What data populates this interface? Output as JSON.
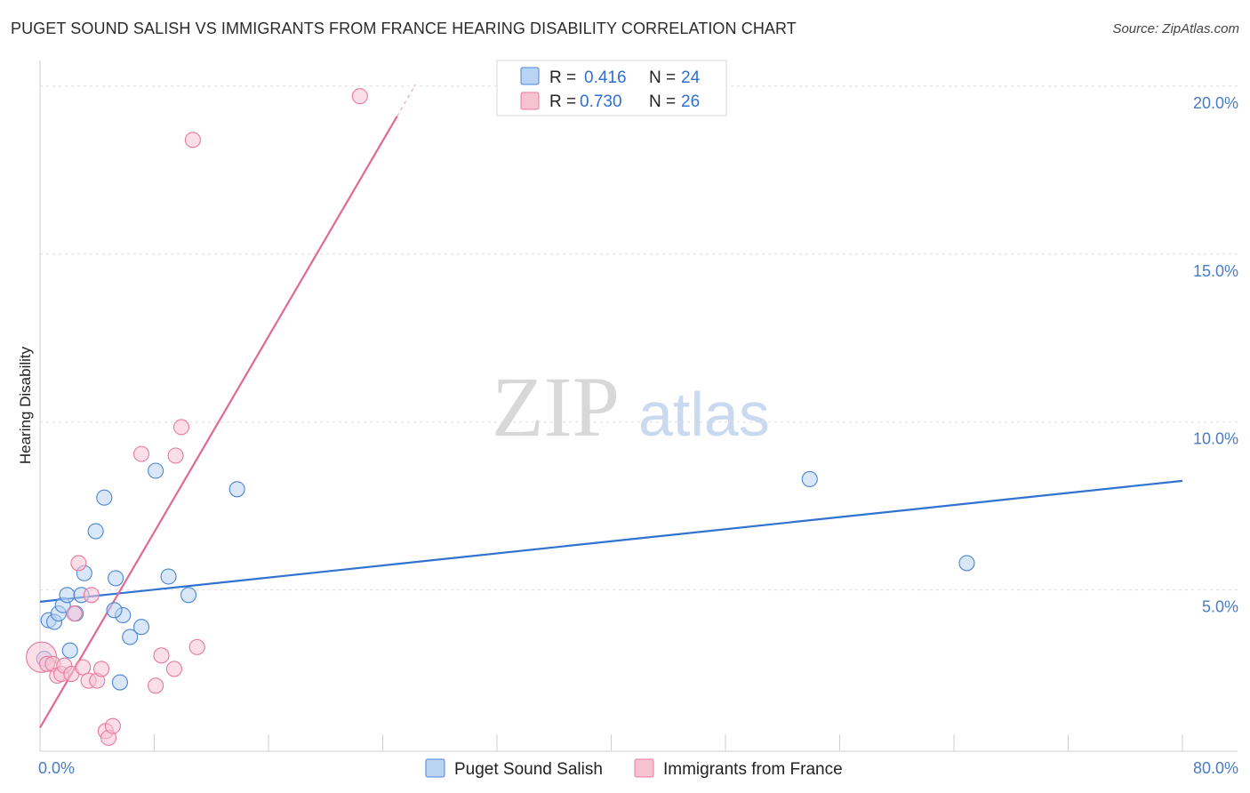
{
  "chart_data": {
    "type": "scatter",
    "title": "PUGET SOUND SALISH VS IMMIGRANTS FROM FRANCE HEARING DISABILITY CORRELATION CHART",
    "source": "Source: ZipAtlas.com",
    "ylabel": "Hearing Disability",
    "xlim": [
      0,
      80
    ],
    "ylim": [
      0.2,
      20.5
    ],
    "x_tick_labels": [
      "0.0%",
      "80.0%"
    ],
    "y_ticks": [
      {
        "value": 5,
        "label": "5.0%"
      },
      {
        "value": 10,
        "label": "10.0%"
      },
      {
        "value": 15,
        "label": "15.0%"
      },
      {
        "value": 20,
        "label": "20.0%"
      }
    ],
    "watermark": {
      "part1": "ZIP",
      "part2": "atlas"
    },
    "legend": {
      "r_label": "R =",
      "n_label": "N ="
    },
    "series": [
      {
        "name": "Puget Sound Salish",
        "color": "#4a86d4",
        "fill": "#b9d3f3",
        "R": "0.416",
        "N": "24",
        "trend": {
          "x0": 0,
          "y0": 4.65,
          "x1": 80,
          "y1": 8.25,
          "color": "#2f72d0"
        },
        "points": [
          [
            0.3,
            2.95
          ],
          [
            0.6,
            4.1
          ],
          [
            1.0,
            4.05
          ],
          [
            1.3,
            4.3
          ],
          [
            1.6,
            4.55
          ],
          [
            1.9,
            4.85
          ],
          [
            2.1,
            3.2
          ],
          [
            2.5,
            4.3
          ],
          [
            2.9,
            4.85
          ],
          [
            3.1,
            5.5
          ],
          [
            3.9,
            6.75
          ],
          [
            4.5,
            7.75
          ],
          [
            5.8,
            4.25
          ],
          [
            5.2,
            4.4
          ],
          [
            5.3,
            5.35
          ],
          [
            5.6,
            2.25
          ],
          [
            6.3,
            3.6
          ],
          [
            7.1,
            3.9
          ],
          [
            8.1,
            8.55
          ],
          [
            9.0,
            5.4
          ],
          [
            10.4,
            4.85
          ],
          [
            13.8,
            8.0
          ],
          [
            53.9,
            8.3
          ],
          [
            64.9,
            5.8
          ]
        ]
      },
      {
        "name": "Immigrants from France",
        "color": "#e8799c",
        "fill": "#f7c3d3",
        "R": "0.730",
        "N": "26",
        "trend": {
          "x0": 0,
          "y0": 0.9,
          "x1": 25,
          "y1": 19.1,
          "dash_x1": 26.3,
          "dash_y1": 20.05,
          "color": "#e06a92"
        },
        "points": [
          [
            0.1,
            3.0
          ],
          [
            0.5,
            2.8
          ],
          [
            0.9,
            2.8
          ],
          [
            1.2,
            2.45
          ],
          [
            1.5,
            2.5
          ],
          [
            1.7,
            2.75
          ],
          [
            2.2,
            2.5
          ],
          [
            2.4,
            4.3
          ],
          [
            2.7,
            5.8
          ],
          [
            3.0,
            2.7
          ],
          [
            3.4,
            2.3
          ],
          [
            3.6,
            4.85
          ],
          [
            4.0,
            2.3
          ],
          [
            4.3,
            2.65
          ],
          [
            4.6,
            0.8
          ],
          [
            4.8,
            0.6
          ],
          [
            5.1,
            0.95
          ],
          [
            7.1,
            9.05
          ],
          [
            8.1,
            2.15
          ],
          [
            8.5,
            3.05
          ],
          [
            9.4,
            2.65
          ],
          [
            9.5,
            9.0
          ],
          [
            9.9,
            9.85
          ],
          [
            10.7,
            18.4
          ],
          [
            11.0,
            3.3
          ],
          [
            22.4,
            19.7
          ]
        ]
      }
    ]
  }
}
